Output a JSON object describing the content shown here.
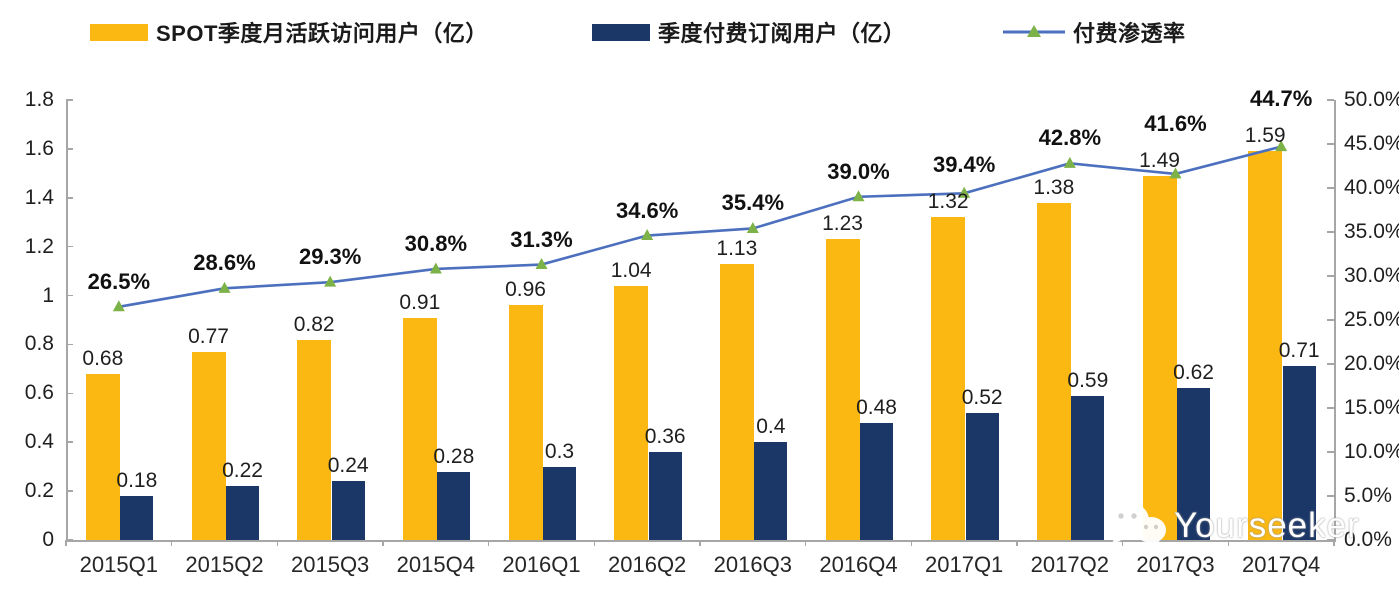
{
  "legend": {
    "items": [
      {
        "label": "SPOT季度月活跃访问用户（亿）",
        "type": "bar",
        "color": "#FBB812"
      },
      {
        "label": "季度付费订阅用户（亿）",
        "type": "bar",
        "color": "#1B3768"
      },
      {
        "label": "付费渗透率",
        "type": "line",
        "color": "#4C70BE",
        "marker_color": "#7DB249"
      }
    ]
  },
  "chart_data": {
    "type": "bar+line",
    "categories": [
      "2015Q1",
      "2015Q2",
      "2015Q3",
      "2015Q4",
      "2016Q1",
      "2016Q2",
      "2016Q3",
      "2016Q4",
      "2017Q1",
      "2017Q2",
      "2017Q3",
      "2017Q4"
    ],
    "series": [
      {
        "name": "SPOT季度月活跃访问用户（亿）",
        "type": "bar",
        "axis": "left",
        "color": "#FBB812",
        "values": [
          0.68,
          0.77,
          0.82,
          0.91,
          0.96,
          1.04,
          1.13,
          1.23,
          1.32,
          1.38,
          1.49,
          1.59
        ],
        "labels": [
          "0.68",
          "0.77",
          "0.82",
          "0.91",
          "0.96",
          "1.04",
          "1.13",
          "1.23",
          "1.32",
          "1.38",
          "1.49",
          "1.59"
        ]
      },
      {
        "name": "季度付费订阅用户（亿）",
        "type": "bar",
        "axis": "left",
        "color": "#1B3768",
        "values": [
          0.18,
          0.22,
          0.24,
          0.28,
          0.3,
          0.36,
          0.4,
          0.48,
          0.52,
          0.59,
          0.62,
          0.71
        ],
        "labels": [
          "0.18",
          "0.22",
          "0.24",
          "0.28",
          "0.3",
          "0.36",
          "0.4",
          "0.48",
          "0.52",
          "0.59",
          "0.62",
          "0.71"
        ]
      },
      {
        "name": "付费渗透率",
        "type": "line",
        "axis": "right",
        "color": "#4C70BE",
        "marker": "triangle",
        "marker_color": "#7DB249",
        "values": [
          26.5,
          28.6,
          29.3,
          30.8,
          31.3,
          34.6,
          35.4,
          39.0,
          39.4,
          42.8,
          41.6,
          44.7
        ],
        "labels": [
          "26.5%",
          "28.6%",
          "29.3%",
          "30.8%",
          "31.3%",
          "34.6%",
          "35.4%",
          "39.0%",
          "39.4%",
          "42.8%",
          "41.6%",
          "44.7%"
        ]
      }
    ],
    "left_axis": {
      "min": 0,
      "max": 1.8,
      "step": 0.2,
      "ticks": [
        "0",
        "0.2",
        "0.4",
        "0.6",
        "0.8",
        "1",
        "1.2",
        "1.4",
        "1.6",
        "1.8"
      ]
    },
    "right_axis": {
      "min": 0,
      "max": 50,
      "step": 5,
      "ticks": [
        "0.0%",
        "5.0%",
        "10.0%",
        "15.0%",
        "20.0%",
        "25.0%",
        "30.0%",
        "35.0%",
        "40.0%",
        "45.0%",
        "50.0%"
      ]
    },
    "grid": false,
    "legend_position": "top",
    "title": ""
  },
  "watermark": {
    "text": "Yourseeker",
    "icon": "wechat-icon"
  }
}
